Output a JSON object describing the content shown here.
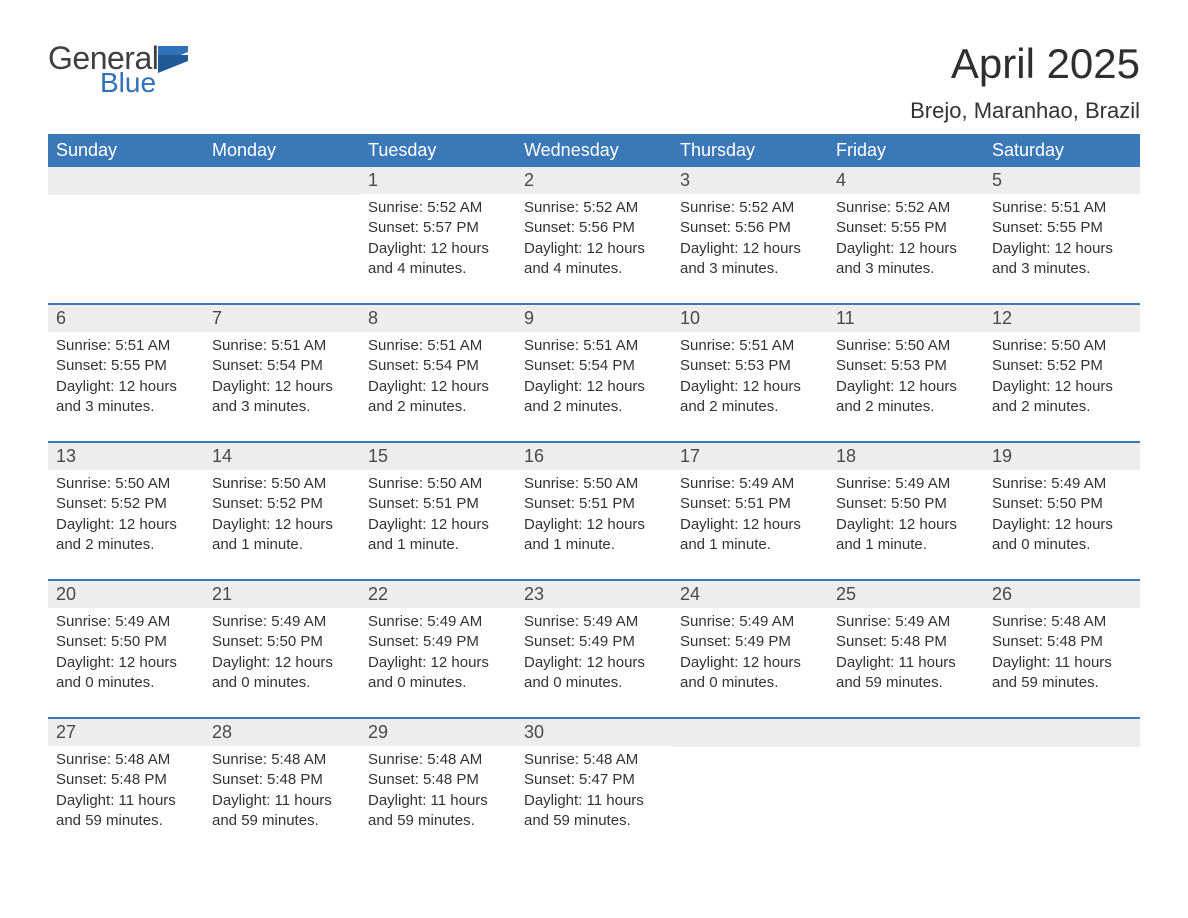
{
  "logo": {
    "main": "General",
    "sub": "Blue"
  },
  "title": "April 2025",
  "subtitle": "Brejo, Maranhao, Brazil",
  "colors": {
    "header_bg": "#3a78b8",
    "header_text": "#ffffff",
    "daynum_bg": "#ededed",
    "body_text": "#333333",
    "rule": "#3a78b8",
    "logo_gray": "#3f3f3f",
    "logo_blue": "#2f72b8"
  },
  "columns": [
    "Sunday",
    "Monday",
    "Tuesday",
    "Wednesday",
    "Thursday",
    "Friday",
    "Saturday"
  ],
  "weeks": [
    [
      null,
      null,
      {
        "n": "1",
        "sr": "5:52 AM",
        "ss": "5:57 PM",
        "dl": "12 hours and 4 minutes."
      },
      {
        "n": "2",
        "sr": "5:52 AM",
        "ss": "5:56 PM",
        "dl": "12 hours and 4 minutes."
      },
      {
        "n": "3",
        "sr": "5:52 AM",
        "ss": "5:56 PM",
        "dl": "12 hours and 3 minutes."
      },
      {
        "n": "4",
        "sr": "5:52 AM",
        "ss": "5:55 PM",
        "dl": "12 hours and 3 minutes."
      },
      {
        "n": "5",
        "sr": "5:51 AM",
        "ss": "5:55 PM",
        "dl": "12 hours and 3 minutes."
      }
    ],
    [
      {
        "n": "6",
        "sr": "5:51 AM",
        "ss": "5:55 PM",
        "dl": "12 hours and 3 minutes."
      },
      {
        "n": "7",
        "sr": "5:51 AM",
        "ss": "5:54 PM",
        "dl": "12 hours and 3 minutes."
      },
      {
        "n": "8",
        "sr": "5:51 AM",
        "ss": "5:54 PM",
        "dl": "12 hours and 2 minutes."
      },
      {
        "n": "9",
        "sr": "5:51 AM",
        "ss": "5:54 PM",
        "dl": "12 hours and 2 minutes."
      },
      {
        "n": "10",
        "sr": "5:51 AM",
        "ss": "5:53 PM",
        "dl": "12 hours and 2 minutes."
      },
      {
        "n": "11",
        "sr": "5:50 AM",
        "ss": "5:53 PM",
        "dl": "12 hours and 2 minutes."
      },
      {
        "n": "12",
        "sr": "5:50 AM",
        "ss": "5:52 PM",
        "dl": "12 hours and 2 minutes."
      }
    ],
    [
      {
        "n": "13",
        "sr": "5:50 AM",
        "ss": "5:52 PM",
        "dl": "12 hours and 2 minutes."
      },
      {
        "n": "14",
        "sr": "5:50 AM",
        "ss": "5:52 PM",
        "dl": "12 hours and 1 minute."
      },
      {
        "n": "15",
        "sr": "5:50 AM",
        "ss": "5:51 PM",
        "dl": "12 hours and 1 minute."
      },
      {
        "n": "16",
        "sr": "5:50 AM",
        "ss": "5:51 PM",
        "dl": "12 hours and 1 minute."
      },
      {
        "n": "17",
        "sr": "5:49 AM",
        "ss": "5:51 PM",
        "dl": "12 hours and 1 minute."
      },
      {
        "n": "18",
        "sr": "5:49 AM",
        "ss": "5:50 PM",
        "dl": "12 hours and 1 minute."
      },
      {
        "n": "19",
        "sr": "5:49 AM",
        "ss": "5:50 PM",
        "dl": "12 hours and 0 minutes."
      }
    ],
    [
      {
        "n": "20",
        "sr": "5:49 AM",
        "ss": "5:50 PM",
        "dl": "12 hours and 0 minutes."
      },
      {
        "n": "21",
        "sr": "5:49 AM",
        "ss": "5:50 PM",
        "dl": "12 hours and 0 minutes."
      },
      {
        "n": "22",
        "sr": "5:49 AM",
        "ss": "5:49 PM",
        "dl": "12 hours and 0 minutes."
      },
      {
        "n": "23",
        "sr": "5:49 AM",
        "ss": "5:49 PM",
        "dl": "12 hours and 0 minutes."
      },
      {
        "n": "24",
        "sr": "5:49 AM",
        "ss": "5:49 PM",
        "dl": "12 hours and 0 minutes."
      },
      {
        "n": "25",
        "sr": "5:49 AM",
        "ss": "5:48 PM",
        "dl": "11 hours and 59 minutes."
      },
      {
        "n": "26",
        "sr": "5:48 AM",
        "ss": "5:48 PM",
        "dl": "11 hours and 59 minutes."
      }
    ],
    [
      {
        "n": "27",
        "sr": "5:48 AM",
        "ss": "5:48 PM",
        "dl": "11 hours and 59 minutes."
      },
      {
        "n": "28",
        "sr": "5:48 AM",
        "ss": "5:48 PM",
        "dl": "11 hours and 59 minutes."
      },
      {
        "n": "29",
        "sr": "5:48 AM",
        "ss": "5:48 PM",
        "dl": "11 hours and 59 minutes."
      },
      {
        "n": "30",
        "sr": "5:48 AM",
        "ss": "5:47 PM",
        "dl": "11 hours and 59 minutes."
      },
      null,
      null,
      null
    ]
  ],
  "labels": {
    "sunrise": "Sunrise: ",
    "sunset": "Sunset: ",
    "daylight": "Daylight: "
  }
}
